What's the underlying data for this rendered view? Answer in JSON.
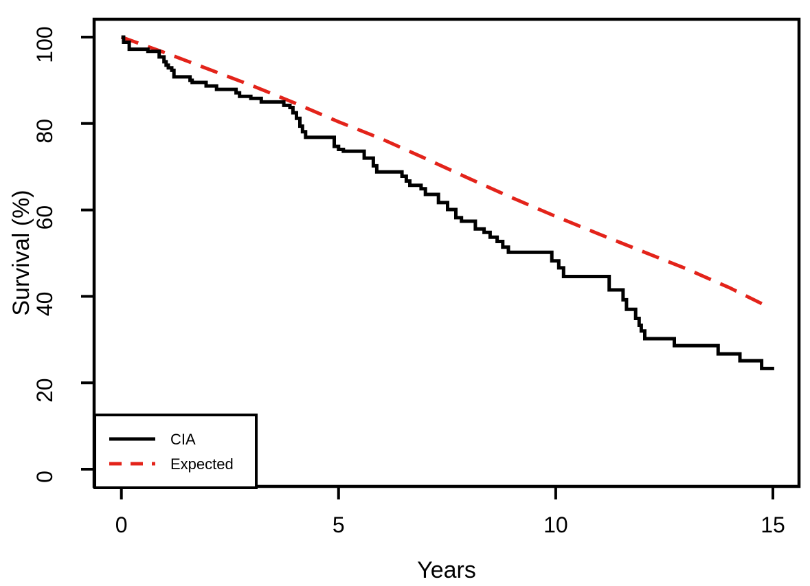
{
  "chart_data": {
    "type": "line",
    "title": "",
    "xlabel": "Years",
    "ylabel": "Survival (%)",
    "xlim": [
      0,
      15
    ],
    "ylim": [
      0,
      100
    ],
    "x_ticks": [
      0,
      5,
      10,
      15
    ],
    "y_ticks": [
      0,
      20,
      40,
      60,
      80,
      100
    ],
    "grid": false,
    "legend_position": "bottom-left",
    "background_color": "#ffffff",
    "axis_color": "#000000",
    "series": [
      {
        "name": "CIA",
        "type": "step",
        "color": "#000000",
        "dash": "solid",
        "points": [
          [
            0,
            100
          ],
          [
            0.05,
            98.8
          ],
          [
            0.18,
            97.2
          ],
          [
            0.61,
            96.7
          ],
          [
            0.87,
            95.4
          ],
          [
            0.98,
            94.3
          ],
          [
            1.03,
            93.5
          ],
          [
            1.08,
            92.9
          ],
          [
            1.16,
            92.3
          ],
          [
            1.21,
            90.8
          ],
          [
            1.58,
            90
          ],
          [
            1.63,
            89.5
          ],
          [
            1.95,
            88.7
          ],
          [
            2.19,
            87.9
          ],
          [
            2.64,
            87.1
          ],
          [
            2.72,
            86.3
          ],
          [
            2.98,
            85.8
          ],
          [
            3.22,
            85
          ],
          [
            3.74,
            84.2
          ],
          [
            3.88,
            83.7
          ],
          [
            3.95,
            82.5
          ],
          [
            4.03,
            81.2
          ],
          [
            4.11,
            79.4
          ],
          [
            4.17,
            78.1
          ],
          [
            4.24,
            76.8
          ],
          [
            4.9,
            74.7
          ],
          [
            5,
            74
          ],
          [
            5.11,
            73.6
          ],
          [
            5.59,
            72
          ],
          [
            5.8,
            70.2
          ],
          [
            5.88,
            68.8
          ],
          [
            6.46,
            67.8
          ],
          [
            6.56,
            66.7
          ],
          [
            6.64,
            65.7
          ],
          [
            6.9,
            64.9
          ],
          [
            7,
            63.6
          ],
          [
            7.3,
            61.7
          ],
          [
            7.51,
            60.1
          ],
          [
            7.7,
            58.2
          ],
          [
            7.83,
            57.4
          ],
          [
            8.15,
            55.6
          ],
          [
            8.35,
            54.8
          ],
          [
            8.49,
            53.7
          ],
          [
            8.65,
            52.7
          ],
          [
            8.78,
            51.4
          ],
          [
            8.91,
            50.2
          ],
          [
            9.91,
            48.2
          ],
          [
            10.07,
            46.6
          ],
          [
            10.18,
            44.6
          ],
          [
            11.23,
            41.5
          ],
          [
            11.55,
            39.2
          ],
          [
            11.63,
            37
          ],
          [
            11.84,
            34.9
          ],
          [
            11.92,
            33.3
          ],
          [
            11.97,
            32
          ],
          [
            12.05,
            30.2
          ],
          [
            12.73,
            28.6
          ],
          [
            13.74,
            26.7
          ],
          [
            14.24,
            25.1
          ],
          [
            14.74,
            23.3
          ],
          [
            15.03,
            23.3
          ]
        ]
      },
      {
        "name": "Expected",
        "type": "line",
        "color": "#e3231a",
        "dash": "dashed",
        "points": [
          [
            0,
            100
          ],
          [
            1,
            96.4
          ],
          [
            2,
            92.6
          ],
          [
            3,
            88.8
          ],
          [
            4,
            84.7
          ],
          [
            5,
            80.4
          ],
          [
            6,
            76.4
          ],
          [
            7,
            71.9
          ],
          [
            8,
            67.3
          ],
          [
            9,
            62.8
          ],
          [
            10,
            58.5
          ],
          [
            11,
            54.4
          ],
          [
            12,
            50.4
          ],
          [
            13,
            46.4
          ],
          [
            14,
            42
          ],
          [
            14.93,
            37.4
          ]
        ]
      }
    ]
  },
  "legend": {
    "items": [
      {
        "label": "CIA",
        "line_style": "solid",
        "color": "#000000"
      },
      {
        "label": "Expected",
        "line_style": "dashed",
        "color": "#e3231a"
      }
    ]
  }
}
